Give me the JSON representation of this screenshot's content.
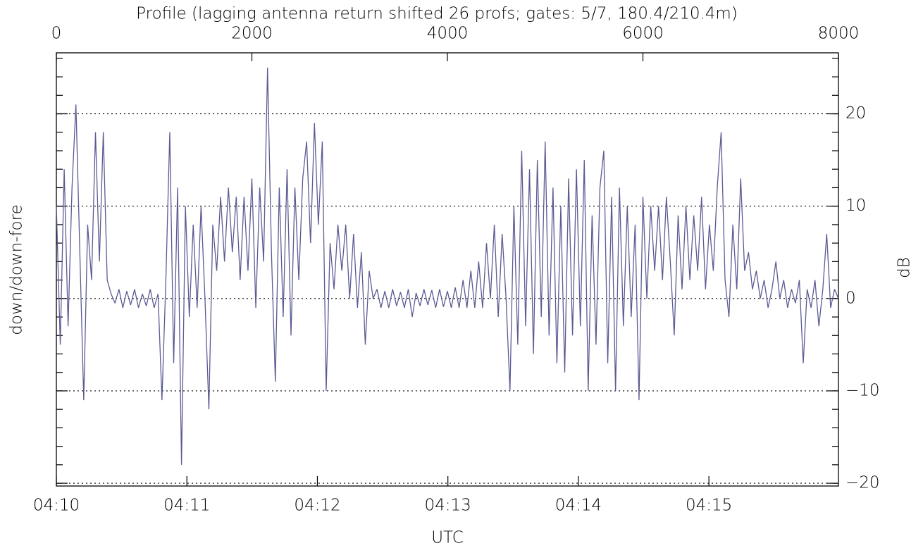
{
  "chart_data": {
    "type": "line",
    "title": "Profile (lagging antenna return shifted 26 profs; gates: 5/7, 180.4/210.4m)",
    "x_label": "UTC",
    "y_label": "down/down-fore",
    "y2_label": "dB",
    "color": "#5b5b94",
    "grid": true,
    "xlim": [
      0,
      8000
    ],
    "xticks": [
      0,
      2000,
      4000,
      6000,
      8000
    ],
    "x2ticks": [
      {
        "value": 0,
        "label": "04:10"
      },
      {
        "value": 1335,
        "label": "04:11"
      },
      {
        "value": 2670,
        "label": "04:12"
      },
      {
        "value": 4005,
        "label": "04:13"
      },
      {
        "value": 5340,
        "label": "04:14"
      },
      {
        "value": 6675,
        "label": "04:15"
      }
    ],
    "ylim": [
      -20.3,
      26.6
    ],
    "yticks": [
      {
        "value": -20,
        "label": "−20"
      },
      {
        "value": -10,
        "label": "−10"
      },
      0,
      10,
      20
    ],
    "yminorticks": [
      -20,
      -18,
      -16,
      -14,
      -12,
      -10,
      -8,
      -6,
      -4,
      -2,
      0,
      2,
      4,
      6,
      8,
      10,
      12,
      14,
      16,
      18,
      20,
      22,
      24,
      26
    ],
    "x": [
      0,
      40,
      80,
      120,
      160,
      200,
      240,
      280,
      320,
      360,
      400,
      440,
      480,
      520,
      560,
      600,
      640,
      680,
      720,
      760,
      800,
      840,
      880,
      920,
      960,
      1000,
      1040,
      1080,
      1120,
      1160,
      1200,
      1240,
      1280,
      1320,
      1360,
      1400,
      1440,
      1480,
      1520,
      1560,
      1600,
      1640,
      1680,
      1720,
      1760,
      1800,
      1840,
      1880,
      1920,
      1960,
      2000,
      2040,
      2080,
      2120,
      2160,
      2200,
      2240,
      2280,
      2320,
      2360,
      2400,
      2440,
      2480,
      2520,
      2560,
      2600,
      2640,
      2680,
      2720,
      2760,
      2800,
      2840,
      2880,
      2920,
      2960,
      3000,
      3040,
      3080,
      3120,
      3160,
      3200,
      3240,
      3280,
      3320,
      3360,
      3400,
      3440,
      3480,
      3520,
      3560,
      3600,
      3640,
      3680,
      3720,
      3760,
      3800,
      3840,
      3880,
      3920,
      3960,
      4000,
      4040,
      4080,
      4120,
      4160,
      4200,
      4240,
      4280,
      4320,
      4360,
      4400,
      4440,
      4480,
      4520,
      4560,
      4600,
      4640,
      4680,
      4720,
      4760,
      4800,
      4840,
      4880,
      4920,
      4960,
      5000,
      5040,
      5080,
      5120,
      5160,
      5200,
      5240,
      5280,
      5320,
      5360,
      5400,
      5440,
      5480,
      5520,
      5560,
      5600,
      5640,
      5680,
      5720,
      5760,
      5800,
      5840,
      5880,
      5920,
      5960,
      6000,
      6040,
      6080,
      6120,
      6160,
      6200,
      6240,
      6280,
      6320,
      6360,
      6400,
      6440,
      6480,
      6520,
      6560,
      6600,
      6640,
      6680,
      6720,
      6760,
      6800,
      6840,
      6880,
      6920,
      6960,
      7000,
      7040,
      7080,
      7120,
      7160,
      7200,
      7240,
      7280,
      7320,
      7360,
      7400,
      7440,
      7480,
      7520,
      7560,
      7600,
      7640,
      7680,
      7720,
      7760,
      7800,
      7840,
      7880,
      7920,
      7960,
      8000
    ],
    "values": [
      10,
      -5,
      14,
      -3,
      12,
      21,
      5,
      -11,
      8,
      2,
      18,
      4,
      18,
      2,
      0.5,
      -0.5,
      1,
      -1,
      0.8,
      -0.7,
      1,
      -1,
      0.5,
      -0.8,
      1,
      -1,
      0.5,
      -11,
      2,
      18,
      -7,
      12,
      -18,
      10,
      -2,
      8,
      -1,
      10,
      0,
      -12,
      8,
      3,
      11,
      4,
      12,
      5,
      11,
      2,
      11,
      3,
      13,
      -1,
      12,
      4,
      25,
      5,
      -9,
      12,
      -2,
      14,
      -4,
      12,
      2,
      13,
      17,
      6,
      19,
      8,
      17,
      -10,
      6,
      1,
      8,
      3,
      8,
      0,
      7,
      -1,
      5,
      -5,
      3,
      0,
      1,
      -1,
      0.8,
      -1,
      1,
      -0.8,
      0.7,
      -1,
      1,
      -2,
      0.6,
      -0.8,
      1,
      -0.7,
      0.9,
      -1,
      1,
      -0.9,
      0.8,
      -1,
      1.2,
      -1,
      2,
      -1,
      3,
      -1,
      4,
      -1,
      6,
      0,
      8,
      -2,
      7,
      0,
      -10,
      10,
      -5,
      16,
      -3,
      14,
      -6,
      15,
      -2,
      17,
      -4,
      12,
      -7,
      10,
      -8,
      13,
      -4,
      14,
      -3,
      15,
      -10,
      9,
      -5,
      12,
      16,
      -7,
      11,
      -10,
      12,
      -3,
      10,
      -2,
      8,
      -11,
      11,
      0,
      10,
      3,
      10,
      2,
      11,
      4,
      -4,
      9,
      1,
      10,
      2,
      9,
      3,
      11,
      1,
      8,
      3,
      12,
      18,
      2,
      -2,
      8,
      1,
      13,
      3,
      5,
      1,
      3,
      0,
      2,
      -1,
      1,
      4,
      0,
      2,
      -1,
      1,
      -0.5,
      2,
      -7,
      1,
      -1,
      2,
      -3,
      1,
      7,
      -1,
      1,
      0
    ]
  }
}
